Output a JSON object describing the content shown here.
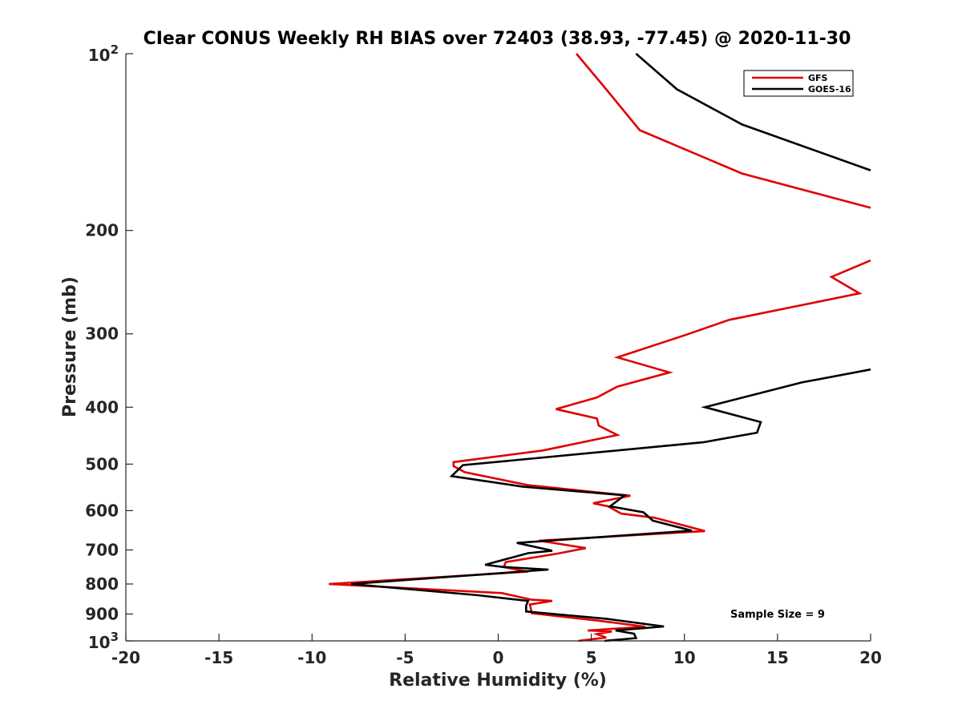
{
  "chart_data": {
    "type": "line",
    "title": "CIear CONUS Weekly RH BIAS over 72403 (38.93, -77.45) @ 2020-11-30",
    "xlabel": "Relative Humidity (%)",
    "ylabel": "Pressure (mb)",
    "xlim": [
      -20,
      20
    ],
    "ylim": [
      100,
      1000
    ],
    "y_scale": "log",
    "y_reversed": true,
    "grid": false,
    "legend_position": "top-right",
    "x_ticks": [
      "-20",
      "-15",
      "-10",
      "-5",
      "0",
      "5",
      "10",
      "15",
      "20"
    ],
    "y_ticks": [
      {
        "value": 100,
        "base": "10",
        "exp": "2"
      },
      {
        "value": 200,
        "label": "200"
      },
      {
        "value": 300,
        "label": "300"
      },
      {
        "value": 400,
        "label": "400"
      },
      {
        "value": 500,
        "label": "500"
      },
      {
        "value": 600,
        "label": "600"
      },
      {
        "value": 700,
        "label": "700"
      },
      {
        "value": 800,
        "label": "800"
      },
      {
        "value": 900,
        "label": "900"
      },
      {
        "value": 1000,
        "base": "10",
        "exp": "3"
      }
    ],
    "series": [
      {
        "name": "GFS",
        "color": "#e00000",
        "segments": [
          [
            [
              4.2,
              100
            ],
            [
              5.8,
              115
            ],
            [
              7.6,
              135
            ],
            [
              13.1,
              160
            ],
            [
              20.0,
              183
            ]
          ],
          [
            [
              20.0,
              225
            ],
            [
              17.9,
              240
            ],
            [
              19.4,
              256
            ],
            [
              12.4,
              284
            ],
            [
              10.1,
              301
            ],
            [
              6.4,
              329
            ],
            [
              9.2,
              349
            ],
            [
              6.4,
              369
            ],
            [
              5.3,
              385
            ],
            [
              3.1,
              403
            ],
            [
              5.3,
              418
            ],
            [
              5.4,
              430
            ],
            [
              6.4,
              446
            ],
            [
              2.4,
              474
            ],
            [
              -2.4,
              496
            ],
            [
              -2.4,
              504
            ],
            [
              -1.8,
              516
            ],
            [
              1.6,
              543
            ],
            [
              7.1,
              566
            ],
            [
              5.1,
              583
            ],
            [
              5.9,
              590
            ],
            [
              6.6,
              607
            ],
            [
              8.4,
              617
            ],
            [
              11.1,
              650
            ],
            [
              2.2,
              675
            ],
            [
              4.7,
              695
            ],
            [
              3.2,
              710
            ],
            [
              0.4,
              734
            ],
            [
              0.3,
              749
            ],
            [
              1.6,
              762
            ],
            [
              -9.1,
              800
            ],
            [
              0.2,
              829
            ],
            [
              1.8,
              851
            ],
            [
              2.9,
              855
            ],
            [
              1.7,
              867
            ],
            [
              1.8,
              897
            ],
            [
              5.4,
              924
            ],
            [
              7.9,
              946
            ],
            [
              4.8,
              960
            ],
            [
              6.1,
              964
            ],
            [
              5.3,
              974
            ],
            [
              5.8,
              987
            ],
            [
              4.3,
              1000
            ]
          ]
        ]
      },
      {
        "name": "GOES-16",
        "color": "#000000",
        "segments": [
          [
            [
              7.4,
              100
            ],
            [
              9.6,
              115
            ],
            [
              13.1,
              132
            ],
            [
              20.0,
              158
            ]
          ],
          [
            [
              20.0,
              345
            ],
            [
              16.3,
              363
            ],
            [
              11.1,
              400
            ],
            [
              14.1,
              424
            ],
            [
              13.9,
              442
            ],
            [
              11.0,
              459
            ],
            [
              -1.9,
              502
            ],
            [
              -2.5,
              524
            ],
            [
              1.3,
              546
            ],
            [
              6.8,
              565
            ],
            [
              6.0,
              590
            ],
            [
              7.8,
              604
            ],
            [
              8.3,
              624
            ],
            [
              10.4,
              649
            ],
            [
              1.0,
              681
            ],
            [
              2.9,
              702
            ],
            [
              1.6,
              709
            ],
            [
              -0.7,
              742
            ],
            [
              0.2,
              748
            ],
            [
              2.7,
              756
            ],
            [
              -7.9,
              800
            ],
            [
              -1.1,
              836
            ],
            [
              1.6,
              855
            ],
            [
              1.5,
              871
            ],
            [
              1.5,
              891
            ],
            [
              5.8,
              917
            ],
            [
              8.9,
              945
            ],
            [
              6.3,
              960
            ],
            [
              7.3,
              972
            ],
            [
              7.4,
              989
            ],
            [
              5.7,
              1000
            ]
          ]
        ]
      }
    ],
    "annotation": "Sample Size = 9"
  }
}
